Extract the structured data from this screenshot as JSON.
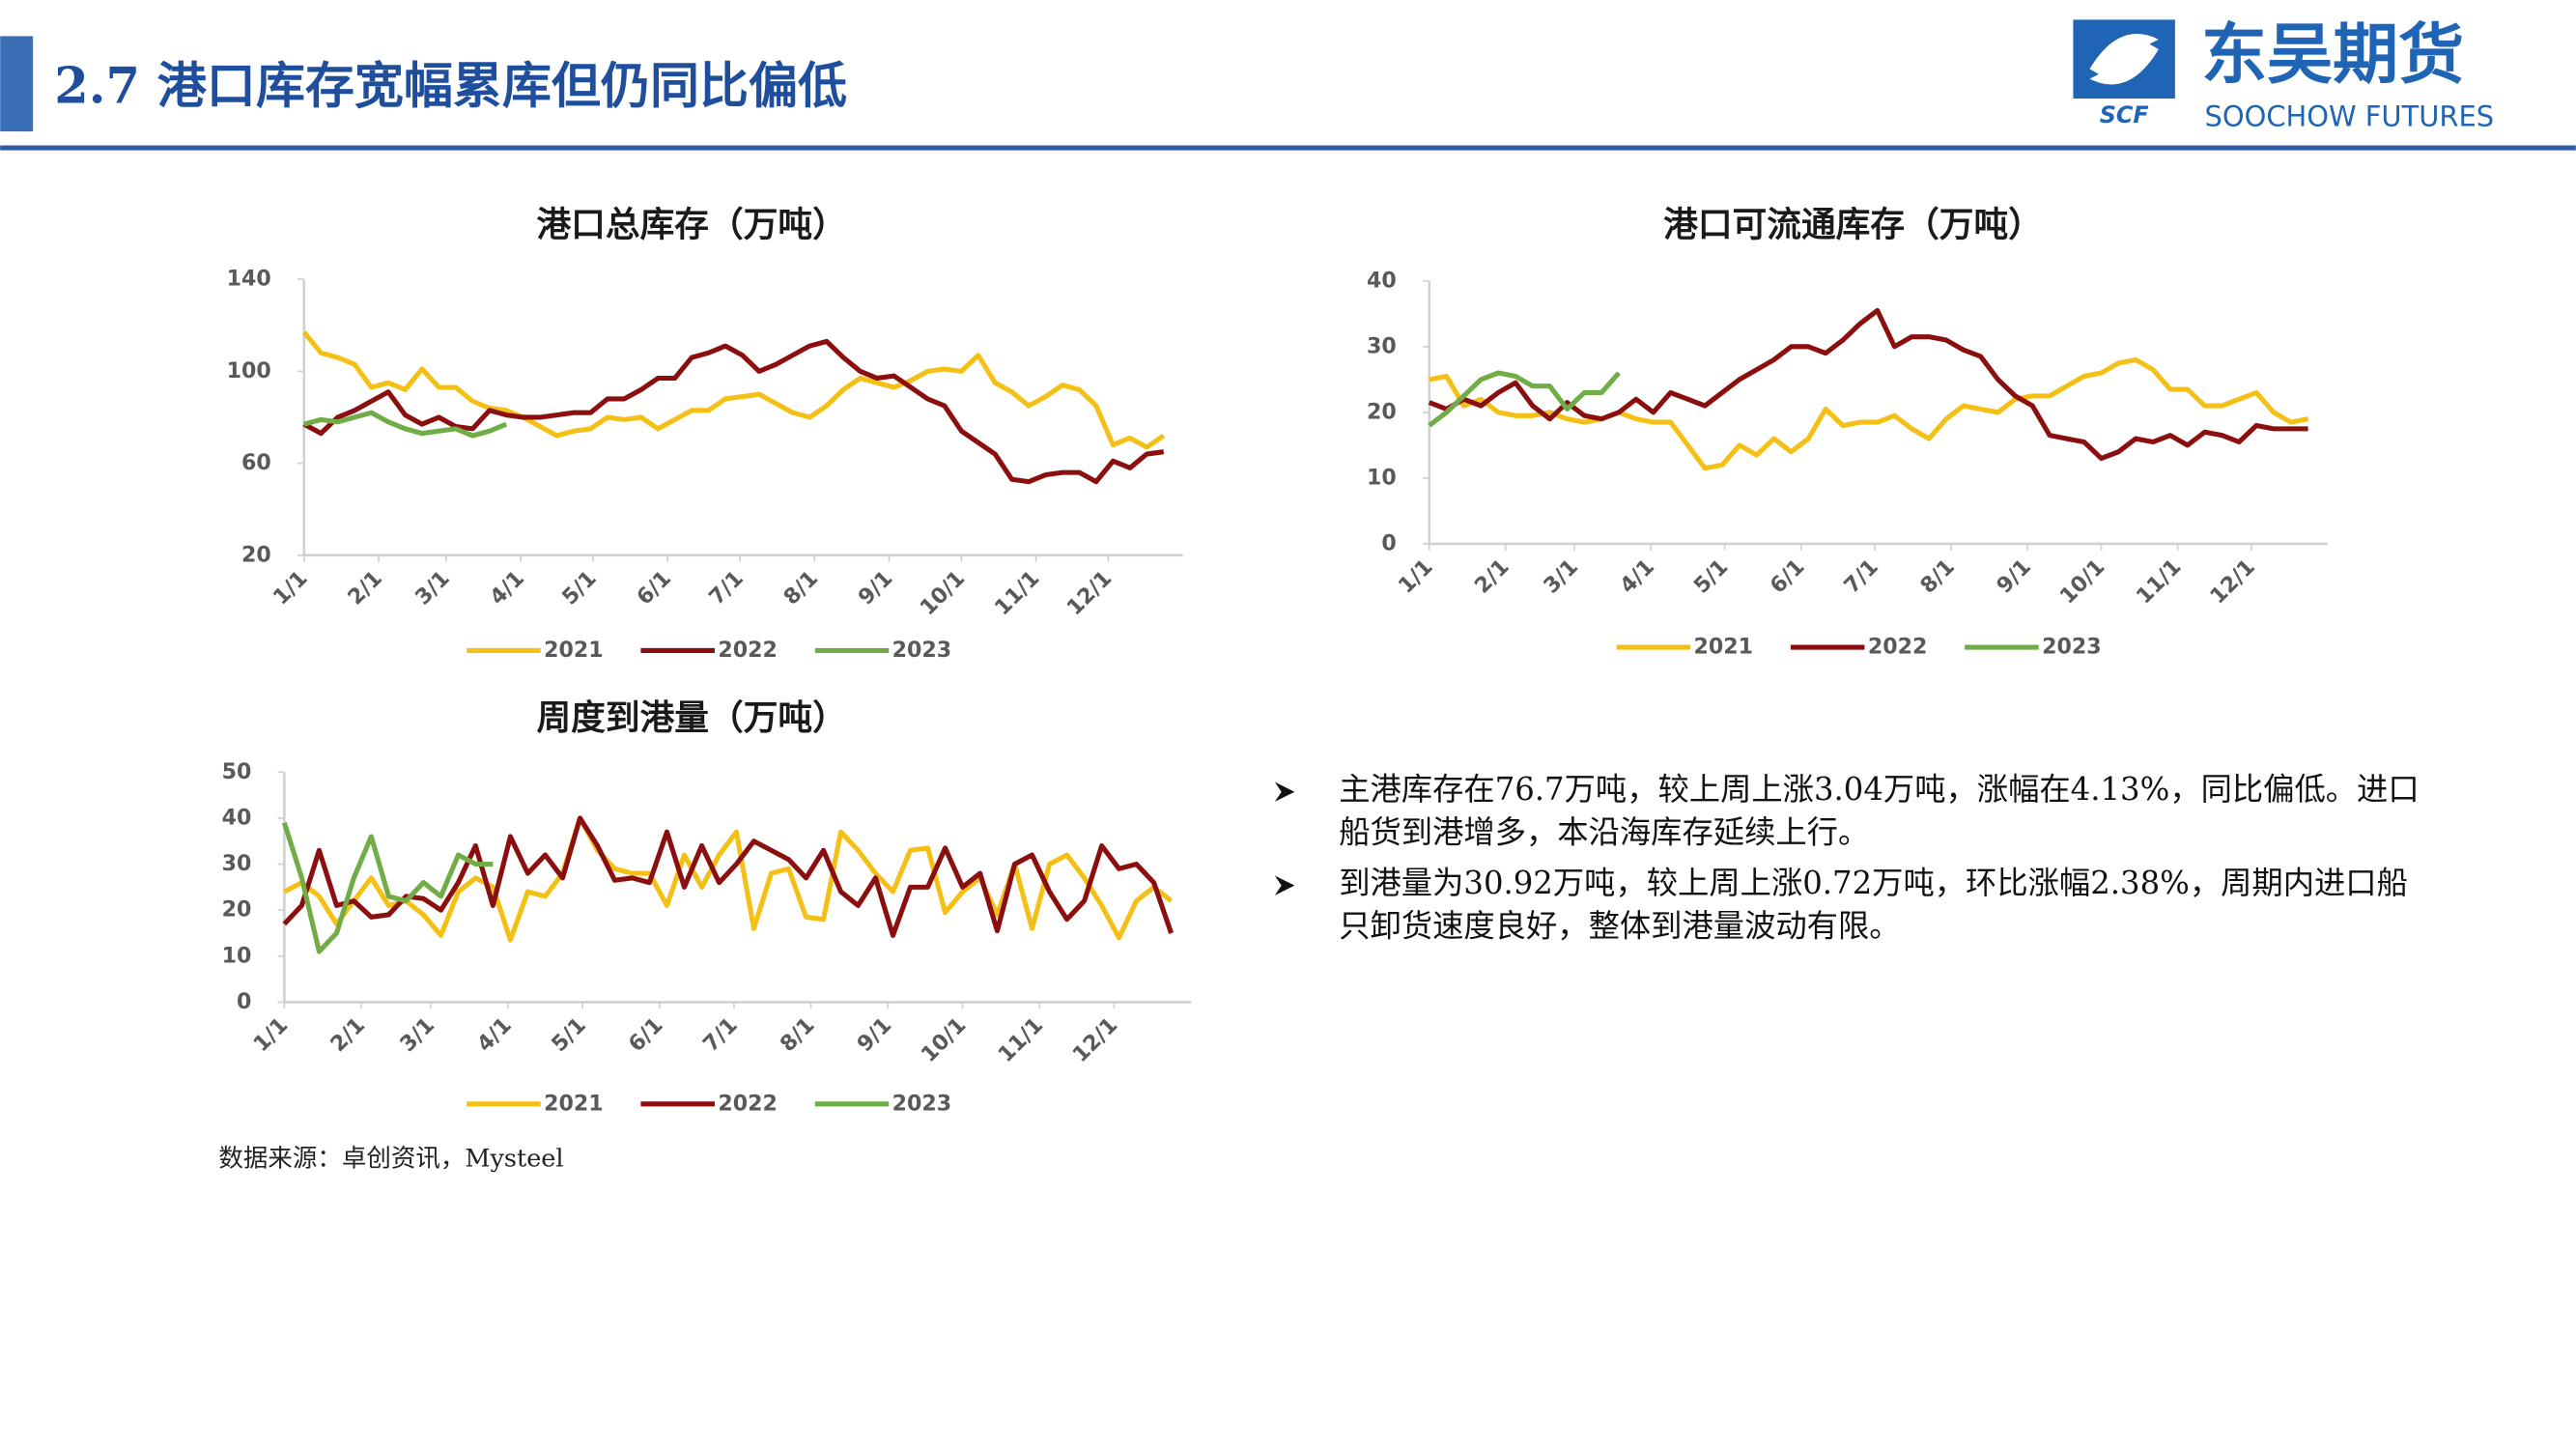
{
  "header": {
    "title": "2.7 港口库存宽幅累库但仍同比偏低",
    "logo_cn": "东吴期货",
    "logo_en": "SOOCHOW FUTURES",
    "logo_abbr": "SCF"
  },
  "bullets": [
    [
      "主港库存在76.7万吨，较上周上涨3.04万吨，涨幅在4.13%，同比偏低。进口",
      "船货到港增多，本沿海库存延续上行。"
    ],
    [
      "到港量为30.92万吨，较上周上涨0.72万吨，环比涨幅2.38%，周期内进口船",
      "只卸货速度良好，整体到港量波动有限。"
    ]
  ],
  "source": "数据来源：卓创资讯，Mysteel",
  "chart_data": [
    {
      "type": "line",
      "title": "港口总库存（万吨）",
      "x": [
        0,
        7,
        14,
        21,
        28,
        35,
        42,
        49,
        56,
        63,
        70,
        77,
        84,
        91,
        98,
        105,
        112,
        119,
        126,
        133,
        140,
        147,
        154,
        161,
        168,
        175,
        182,
        189,
        196,
        203,
        210,
        217,
        224,
        231,
        238,
        245,
        252,
        259,
        266,
        273,
        280,
        287,
        294,
        301,
        308,
        315,
        322,
        329,
        336,
        343,
        350,
        357
      ],
      "xlim": [
        0,
        365
      ],
      "xticks": [
        {
          "value": 0,
          "label": "1/1"
        },
        {
          "value": 31,
          "label": "2/1"
        },
        {
          "value": 59,
          "label": "3/1"
        },
        {
          "value": 90,
          "label": "4/1"
        },
        {
          "value": 120,
          "label": "5/1"
        },
        {
          "value": 151,
          "label": "6/1"
        },
        {
          "value": 181,
          "label": "7/1"
        },
        {
          "value": 212,
          "label": "8/1"
        },
        {
          "value": 243,
          "label": "9/1"
        },
        {
          "value": 273,
          "label": "10/1"
        },
        {
          "value": 304,
          "label": "11/1"
        },
        {
          "value": 334,
          "label": "12/1"
        }
      ],
      "ylim": [
        20,
        140
      ],
      "yticks": [
        20,
        60,
        100,
        140
      ],
      "series": [
        {
          "name": "2021",
          "color": "#f5c016",
          "values": [
            117,
            108,
            106,
            103,
            93,
            95,
            92,
            101,
            93,
            93,
            87,
            84,
            83,
            80,
            76,
            72,
            74,
            75,
            80,
            79,
            80,
            75,
            79,
            83,
            83,
            88,
            89,
            90,
            86,
            82,
            80,
            85,
            92,
            97,
            95,
            93,
            96,
            100,
            101,
            100,
            107,
            95,
            91,
            85,
            89,
            94,
            92,
            85,
            68,
            71,
            67,
            72
          ]
        },
        {
          "name": "2022",
          "color": "#8b0f0f",
          "values": [
            77,
            73,
            80,
            83,
            87,
            91,
            81,
            77,
            80,
            76,
            75,
            83,
            81,
            80,
            80,
            81,
            82,
            82,
            88,
            88,
            92,
            97,
            97,
            106,
            108,
            111,
            107,
            100,
            103,
            107,
            111,
            113,
            106,
            100,
            97,
            98,
            93,
            88,
            85,
            74,
            69,
            64,
            53,
            52,
            55,
            56,
            56,
            52,
            61,
            58,
            64,
            65
          ]
        },
        {
          "name": "2023",
          "color": "#70ad47",
          "values": [
            77,
            79,
            78,
            80,
            82,
            78,
            75,
            73,
            74,
            75,
            72,
            74,
            77,
            null,
            null,
            null,
            null,
            null,
            null,
            null,
            null,
            null,
            null,
            null,
            null,
            null,
            null,
            null,
            null,
            null,
            null,
            null,
            null,
            null,
            null,
            null,
            null,
            null,
            null,
            null,
            null,
            null,
            null,
            null,
            null,
            null,
            null,
            null,
            null,
            null,
            null,
            null
          ]
        }
      ]
    },
    {
      "type": "line",
      "title": "港口可流通库存（万吨）",
      "x": [
        0,
        7,
        14,
        21,
        28,
        35,
        42,
        49,
        56,
        63,
        70,
        77,
        84,
        91,
        98,
        105,
        112,
        119,
        126,
        133,
        140,
        147,
        154,
        161,
        168,
        175,
        182,
        189,
        196,
        203,
        210,
        217,
        224,
        231,
        238,
        245,
        252,
        259,
        266,
        273,
        280,
        287,
        294,
        301,
        308,
        315,
        322,
        329,
        336,
        343,
        350,
        357
      ],
      "xlim": [
        0,
        365
      ],
      "xticks": [
        {
          "value": 0,
          "label": "1/1"
        },
        {
          "value": 31,
          "label": "2/1"
        },
        {
          "value": 59,
          "label": "3/1"
        },
        {
          "value": 90,
          "label": "4/1"
        },
        {
          "value": 120,
          "label": "5/1"
        },
        {
          "value": 151,
          "label": "6/1"
        },
        {
          "value": 181,
          "label": "7/1"
        },
        {
          "value": 212,
          "label": "8/1"
        },
        {
          "value": 243,
          "label": "9/1"
        },
        {
          "value": 273,
          "label": "10/1"
        },
        {
          "value": 304,
          "label": "11/1"
        },
        {
          "value": 334,
          "label": "12/1"
        }
      ],
      "ylim": [
        0,
        40
      ],
      "yticks": [
        0,
        10,
        20,
        30,
        40
      ],
      "series": [
        {
          "name": "2021",
          "color": "#f5c016",
          "values": [
            25,
            25.5,
            21,
            22,
            20,
            19.5,
            19.5,
            20,
            19,
            18.5,
            19,
            20,
            19,
            18.5,
            18.5,
            15,
            11.5,
            12,
            15,
            13.5,
            16,
            14,
            16,
            20.5,
            18,
            18.5,
            18.5,
            19.5,
            17.5,
            16,
            19,
            21,
            20.5,
            20,
            22,
            22.5,
            22.5,
            24,
            25.5,
            26,
            27.5,
            28,
            26.5,
            23.5,
            23.5,
            21,
            21,
            22,
            23,
            20,
            18.5,
            19
          ]
        },
        {
          "name": "2022",
          "color": "#8b0f0f",
          "values": [
            21.5,
            20.5,
            22,
            21,
            23,
            24.5,
            21,
            19,
            21.5,
            19.5,
            19,
            20,
            22,
            20,
            23,
            22,
            21,
            23,
            25,
            26.5,
            28,
            30,
            30,
            29,
            31,
            33.5,
            35.5,
            30,
            31.5,
            31.5,
            31,
            29.5,
            28.5,
            25,
            22.5,
            21,
            16.5,
            16,
            15.5,
            13,
            14,
            16,
            15.5,
            16.5,
            15,
            17,
            16.5,
            15.5,
            18,
            17.5,
            17.5,
            17.5
          ]
        },
        {
          "name": "2023",
          "color": "#70ad47",
          "values": [
            18,
            20,
            22.5,
            25,
            26,
            25.5,
            24,
            24,
            20.5,
            23,
            23,
            26,
            null,
            null,
            null,
            null,
            null,
            null,
            null,
            null,
            null,
            null,
            null,
            null,
            null,
            null,
            null,
            null,
            null,
            null,
            null,
            null,
            null,
            null,
            null,
            null,
            null,
            null,
            null,
            null,
            null,
            null,
            null,
            null,
            null,
            null,
            null,
            null,
            null,
            null,
            null,
            null
          ]
        }
      ]
    },
    {
      "type": "line",
      "title": "周度到港量（万吨）",
      "x": [
        0,
        7,
        14,
        21,
        28,
        35,
        42,
        49,
        56,
        63,
        70,
        77,
        84,
        91,
        98,
        105,
        112,
        119,
        126,
        133,
        140,
        147,
        154,
        161,
        168,
        175,
        182,
        189,
        196,
        203,
        210,
        217,
        224,
        231,
        238,
        245,
        252,
        259,
        266,
        273,
        280,
        287,
        294,
        301,
        308,
        315,
        322,
        329,
        336,
        343,
        350,
        357
      ],
      "xlim": [
        0,
        365
      ],
      "xticks": [
        {
          "value": 0,
          "label": "1/1"
        },
        {
          "value": 31,
          "label": "2/1"
        },
        {
          "value": 59,
          "label": "3/1"
        },
        {
          "value": 90,
          "label": "4/1"
        },
        {
          "value": 120,
          "label": "5/1"
        },
        {
          "value": 151,
          "label": "6/1"
        },
        {
          "value": 181,
          "label": "7/1"
        },
        {
          "value": 212,
          "label": "8/1"
        },
        {
          "value": 243,
          "label": "9/1"
        },
        {
          "value": 273,
          "label": "10/1"
        },
        {
          "value": 304,
          "label": "11/1"
        },
        {
          "value": 334,
          "label": "12/1"
        }
      ],
      "ylim": [
        0,
        50
      ],
      "yticks": [
        0,
        10,
        20,
        30,
        40,
        50
      ],
      "series": [
        {
          "name": "2021",
          "color": "#f5c016",
          "values": [
            24,
            26,
            23,
            17,
            22,
            27,
            21,
            22,
            19,
            14.5,
            24,
            27,
            25,
            13.5,
            24,
            23,
            28,
            40,
            33,
            29,
            28,
            28,
            21,
            32,
            25,
            32,
            37,
            16,
            28,
            29,
            18.5,
            18,
            37,
            33,
            28,
            24,
            33,
            33.5,
            19.5,
            24,
            27,
            19,
            30,
            16,
            30,
            32,
            27,
            21,
            14,
            22,
            25,
            22
          ]
        },
        {
          "name": "2022",
          "color": "#8b0f0f",
          "values": [
            17,
            21,
            33,
            21,
            22,
            18.5,
            19,
            23,
            22.5,
            20,
            26,
            34,
            21,
            36,
            28,
            32,
            27,
            40,
            34,
            26.5,
            27,
            26,
            37,
            25,
            34,
            26,
            30,
            35,
            33,
            31,
            27,
            33,
            24,
            21,
            27,
            14.5,
            25,
            25,
            33.5,
            25,
            28,
            15.5,
            30,
            32,
            24,
            18,
            22,
            34,
            29,
            30,
            26,
            15
          ]
        },
        {
          "name": "2023",
          "color": "#70ad47",
          "values": [
            39,
            27,
            11,
            15,
            27,
            36,
            23,
            22,
            26,
            23,
            32,
            30,
            30,
            null,
            null,
            null,
            null,
            null,
            null,
            null,
            null,
            null,
            null,
            null,
            null,
            null,
            null,
            null,
            null,
            null,
            null,
            null,
            null,
            null,
            null,
            null,
            null,
            null,
            null,
            null,
            null,
            null,
            null,
            null,
            null,
            null,
            null,
            null,
            null,
            null,
            null,
            null
          ]
        }
      ]
    }
  ]
}
